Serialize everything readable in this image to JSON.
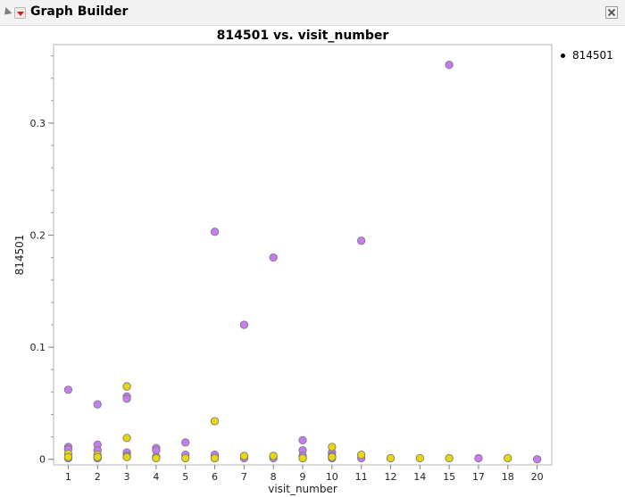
{
  "app": {
    "title": "Graph Builder"
  },
  "chart_data": {
    "type": "scatter",
    "title": "814501 vs. visit_number",
    "xlabel": "visit_number",
    "ylabel": "814501",
    "x_ticks": [
      "1",
      "2",
      "3",
      "4",
      "5",
      "6",
      "7",
      "8",
      "9",
      "10",
      "11",
      "12",
      "14",
      "15",
      "17",
      "18",
      "20"
    ],
    "y_ticks": [
      0,
      0.1,
      0.2,
      0.3
    ],
    "ylim": [
      -0.005,
      0.37
    ],
    "grid": false,
    "legend": {
      "position": "top-right",
      "entries": [
        "814501"
      ]
    },
    "colors": {
      "purple": "#c77cf4",
      "yellow": "#e8d80b",
      "outline": "#7a7a7a"
    },
    "series": [
      {
        "color_key": "purple",
        "points": [
          {
            "x": "1",
            "y": 0.062
          },
          {
            "x": "1",
            "y": 0.011
          },
          {
            "x": "1",
            "y": 0.009
          },
          {
            "x": "1",
            "y": 0.001
          },
          {
            "x": "2",
            "y": 0.049
          },
          {
            "x": "2",
            "y": 0.013
          },
          {
            "x": "2",
            "y": 0.008
          },
          {
            "x": "2",
            "y": 0.001
          },
          {
            "x": "3",
            "y": 0.056
          },
          {
            "x": "3",
            "y": 0.054
          },
          {
            "x": "3",
            "y": 0.006
          },
          {
            "x": "3",
            "y": 0.003
          },
          {
            "x": "4",
            "y": 0.01
          },
          {
            "x": "4",
            "y": 0.008
          },
          {
            "x": "4",
            "y": 0.002
          },
          {
            "x": "5",
            "y": 0.015
          },
          {
            "x": "5",
            "y": 0.004
          },
          {
            "x": "6",
            "y": 0.203
          },
          {
            "x": "6",
            "y": 0.004
          },
          {
            "x": "6",
            "y": 0.001
          },
          {
            "x": "7",
            "y": 0.12
          },
          {
            "x": "7",
            "y": 0.001
          },
          {
            "x": "8",
            "y": 0.18
          },
          {
            "x": "8",
            "y": 0.001
          },
          {
            "x": "9",
            "y": 0.017
          },
          {
            "x": "9",
            "y": 0.008
          },
          {
            "x": "9",
            "y": 0.003
          },
          {
            "x": "9",
            "y": 0.001
          },
          {
            "x": "10",
            "y": 0.006
          },
          {
            "x": "10",
            "y": 0.003
          },
          {
            "x": "10",
            "y": 0.001
          },
          {
            "x": "11",
            "y": 0.195
          },
          {
            "x": "11",
            "y": 0.001
          },
          {
            "x": "15",
            "y": 0.352
          },
          {
            "x": "17",
            "y": 0.001
          },
          {
            "x": "20",
            "y": 0.0
          }
        ]
      },
      {
        "color_key": "yellow",
        "points": [
          {
            "x": "1",
            "y": 0.005
          },
          {
            "x": "1",
            "y": 0.002
          },
          {
            "x": "2",
            "y": 0.004
          },
          {
            "x": "2",
            "y": 0.002
          },
          {
            "x": "3",
            "y": 0.065
          },
          {
            "x": "3",
            "y": 0.019
          },
          {
            "x": "3",
            "y": 0.002
          },
          {
            "x": "4",
            "y": 0.001
          },
          {
            "x": "5",
            "y": 0.001
          },
          {
            "x": "6",
            "y": 0.034
          },
          {
            "x": "6",
            "y": 0.001
          },
          {
            "x": "7",
            "y": 0.003
          },
          {
            "x": "8",
            "y": 0.003
          },
          {
            "x": "9",
            "y": 0.001
          },
          {
            "x": "10",
            "y": 0.011
          },
          {
            "x": "10",
            "y": 0.002
          },
          {
            "x": "11",
            "y": 0.004
          },
          {
            "x": "12",
            "y": 0.001
          },
          {
            "x": "14",
            "y": 0.001
          },
          {
            "x": "15",
            "y": 0.001
          },
          {
            "x": "18",
            "y": 0.001
          }
        ]
      }
    ]
  }
}
